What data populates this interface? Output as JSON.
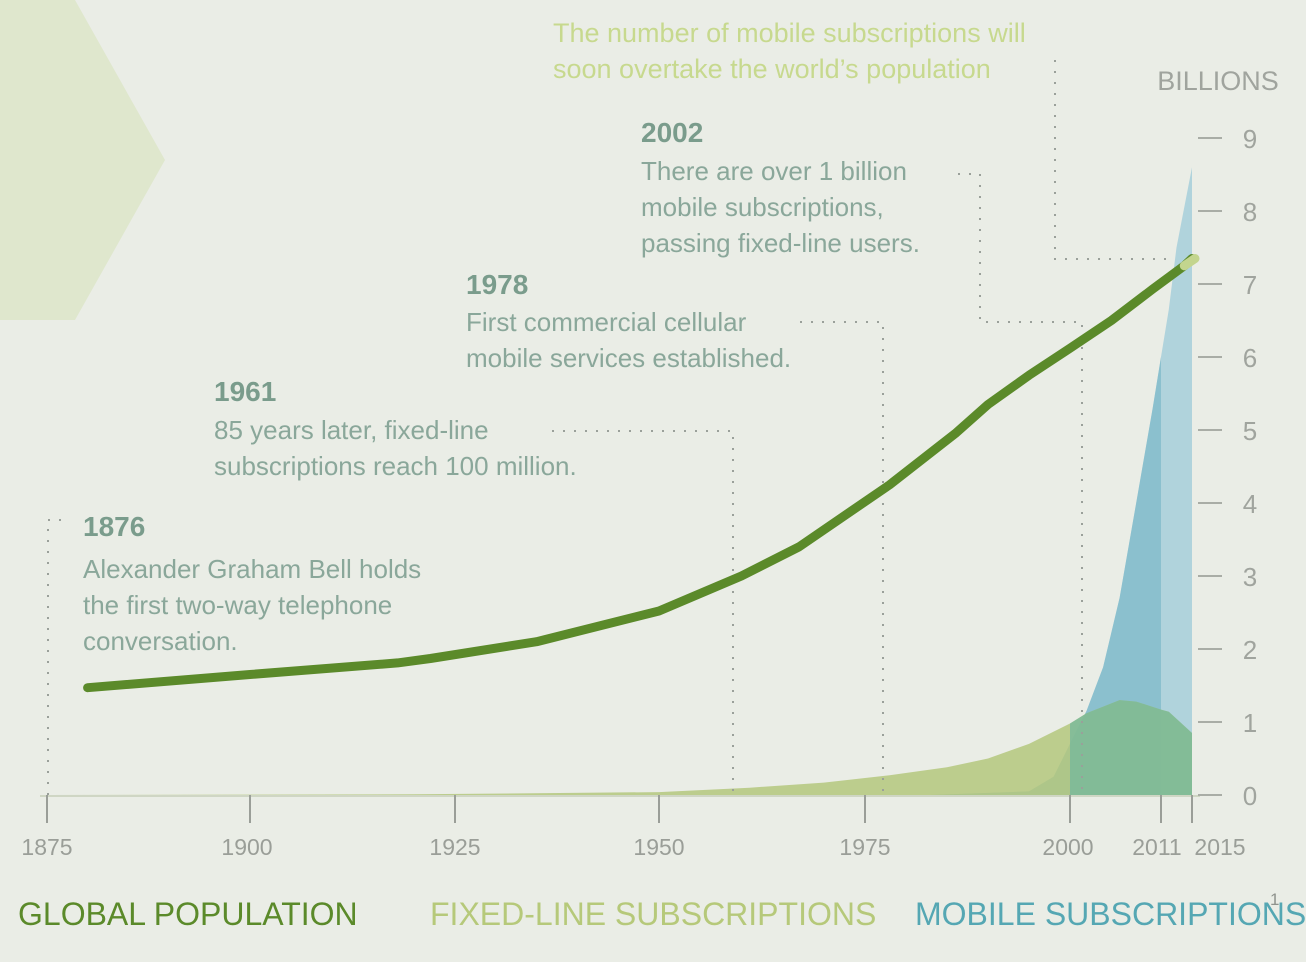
{
  "chart_data": {
    "type": "area",
    "unit_label": "BILLIONS",
    "ylim": [
      0,
      9
    ],
    "y_ticks": [
      "0",
      "1",
      "2",
      "3",
      "4",
      "5",
      "6",
      "7",
      "8",
      "9"
    ],
    "x_ticks": [
      "1875",
      "1900",
      "1925",
      "1950",
      "1975",
      "2000",
      "2011",
      "2015"
    ],
    "series": [
      {
        "name": "GLOBAL POPULATION",
        "kind": "line",
        "color": "#5b8a2a",
        "points": [
          [
            1880,
            1.47
          ],
          [
            1900,
            1.65
          ],
          [
            1918,
            1.81
          ],
          [
            1922,
            1.87
          ],
          [
            1935,
            2.1
          ],
          [
            1950,
            2.52
          ],
          [
            1960,
            3.0
          ],
          [
            1967,
            3.4
          ],
          [
            1978,
            4.25
          ],
          [
            1986,
            4.95
          ],
          [
            1990,
            5.35
          ],
          [
            1995,
            5.75
          ],
          [
            2000,
            6.12
          ],
          [
            2005,
            6.5
          ],
          [
            2010,
            6.93
          ],
          [
            2014,
            7.25
          ],
          [
            2015,
            7.35
          ]
        ]
      },
      {
        "name": "FIXED-LINE SUBSCRIPTIONS",
        "kind": "area",
        "color": "#b4c77d",
        "points": [
          [
            1875,
            0
          ],
          [
            1920,
            0.01
          ],
          [
            1950,
            0.04
          ],
          [
            1961,
            0.1
          ],
          [
            1970,
            0.17
          ],
          [
            1978,
            0.27
          ],
          [
            1985,
            0.38
          ],
          [
            1990,
            0.5
          ],
          [
            1995,
            0.7
          ],
          [
            2000,
            0.98
          ],
          [
            2002,
            1.12
          ],
          [
            2006,
            1.3
          ],
          [
            2008,
            1.28
          ],
          [
            2011,
            1.17
          ],
          [
            2012,
            1.14
          ],
          [
            2015,
            0.85
          ]
        ]
      },
      {
        "name": "MOBILE SUBSCRIPTIONS",
        "kind": "area",
        "color": "#9ccad8",
        "points": [
          [
            1983,
            0
          ],
          [
            1995,
            0.05
          ],
          [
            1998,
            0.25
          ],
          [
            2000,
            0.7
          ],
          [
            2002,
            1.15
          ],
          [
            2004,
            1.75
          ],
          [
            2006,
            2.7
          ],
          [
            2008,
            4.0
          ],
          [
            2010,
            5.3
          ],
          [
            2011,
            6.0
          ],
          [
            2012,
            6.65
          ],
          [
            2013,
            7.5
          ],
          [
            2015,
            8.6
          ]
        ]
      }
    ],
    "annotations": [
      {
        "id": "a1876",
        "year": "1876",
        "lines": [
          "Alexander Graham Bell holds",
          "the first two-way telephone",
          "conversation."
        ]
      },
      {
        "id": "a1961",
        "year": "1961",
        "lines": [
          "85 years later, fixed-line",
          "subscriptions reach 100 million."
        ]
      },
      {
        "id": "a1978",
        "year": "1978",
        "lines": [
          "First commercial cellular",
          "mobile services established."
        ]
      },
      {
        "id": "a2002",
        "year": "2002",
        "lines": [
          "There are over 1 billion",
          "mobile subscriptions,",
          "passing fixed-line users."
        ]
      }
    ],
    "top_note": [
      "The number of mobile subscriptions will",
      "soon overtake the world’s population"
    ],
    "legend": [
      {
        "label": "GLOBAL POPULATION",
        "color": "#5b8a2a"
      },
      {
        "label": "FIXED-LINE SUBSCRIPTIONS",
        "color": "#b6c97a"
      },
      {
        "label": "MOBILE SUBSCRIPTIONS",
        "color": "#55a7b3"
      }
    ],
    "footnote_marker": "1"
  }
}
